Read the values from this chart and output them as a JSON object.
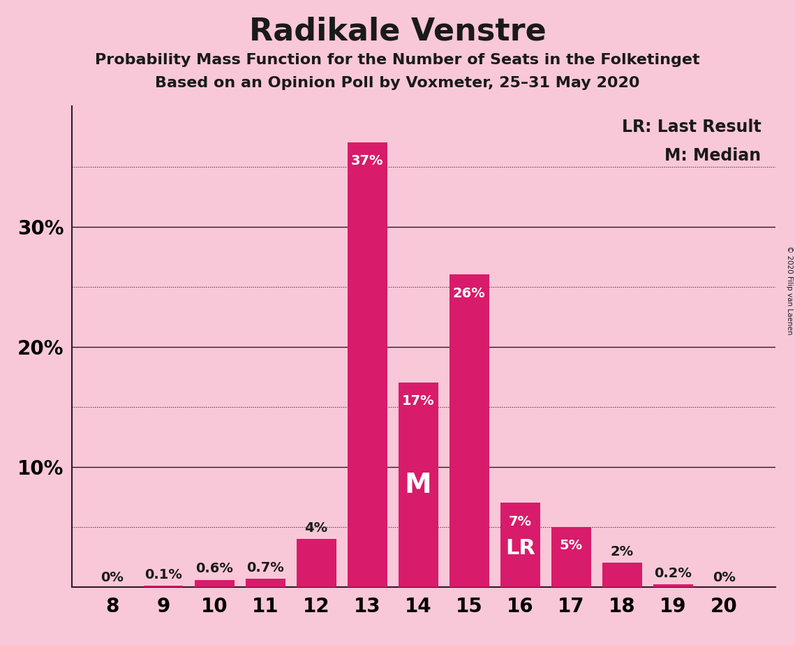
{
  "title": "Radikale Venstre",
  "subtitle1": "Probability Mass Function for the Number of Seats in the Folketinget",
  "subtitle2": "Based on an Opinion Poll by Voxmeter, 25–31 May 2020",
  "copyright": "© 2020 Filip van Laenen",
  "categories": [
    8,
    9,
    10,
    11,
    12,
    13,
    14,
    15,
    16,
    17,
    18,
    19,
    20
  ],
  "values": [
    0.0,
    0.1,
    0.6,
    0.7,
    4.0,
    37.0,
    17.0,
    26.0,
    7.0,
    5.0,
    2.0,
    0.2,
    0.0
  ],
  "labels": [
    "0%",
    "0.1%",
    "0.6%",
    "0.7%",
    "4%",
    "37%",
    "17%",
    "26%",
    "7%",
    "5%",
    "2%",
    "0.2%",
    "0%"
  ],
  "bar_color": "#D81B6A",
  "background_color": "#F9C8D8",
  "text_color": "#1a1a1a",
  "label_color_inside": "#FFFFFF",
  "label_color_outside": "#1a1a1a",
  "median_seat": 14,
  "last_result_seat": 16,
  "legend_lr": "LR: Last Result",
  "legend_m": "M: Median",
  "ylim": [
    0,
    40
  ],
  "solid_gridlines": [
    10,
    20,
    30
  ],
  "dotted_gridlines": [
    5,
    15,
    25,
    35
  ],
  "ytick_positions": [
    10,
    20,
    30
  ],
  "ytick_labels": [
    "10%",
    "20%",
    "30%"
  ],
  "grid_color": "#2a1a2a",
  "spine_color": "#2a1a2a",
  "title_fontsize": 32,
  "subtitle_fontsize": 16,
  "axis_fontsize": 20,
  "bar_label_fontsize": 14,
  "bar_width": 0.78
}
